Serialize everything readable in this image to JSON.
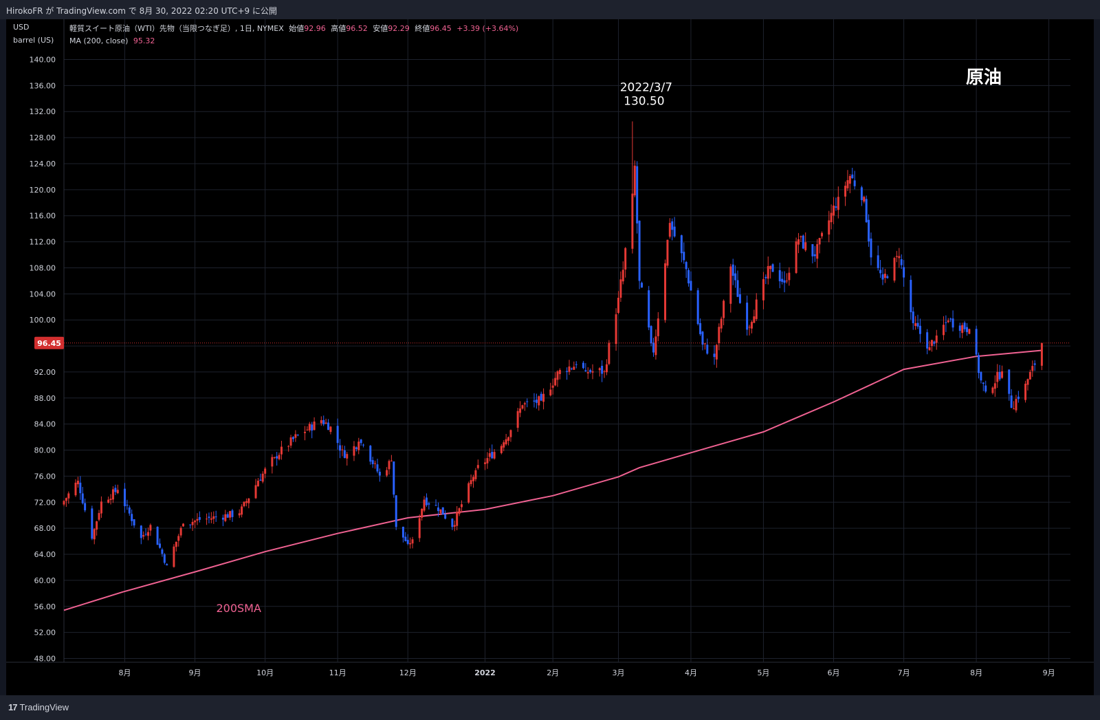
{
  "header": {
    "publish_line": "HirokoFR が TradingView.com で 8月 30, 2022 02:20 UTC+9 に公開"
  },
  "footer": {
    "brand": "TradingView",
    "brand_mark": "17"
  },
  "legend": {
    "title": "軽質スイート原油（WTI）先物（当限つなぎ足）, 1日, NYMEX",
    "open_label": "始値",
    "open": "92.96",
    "high_label": "高値",
    "high": "96.52",
    "low_label": "安値",
    "low": "92.29",
    "close_label": "終値",
    "close": "96.45",
    "change": "+3.39 (+3.64%)",
    "ma_label": "MA (200, close)",
    "ma_value": "95.32"
  },
  "chart_data": {
    "type": "candlestick",
    "title": "軽質スイート原油（WTI）先物（当限つなぎ足）, 1日, NYMEX",
    "unit_labels": [
      "USD",
      "barrel (US)"
    ],
    "watermark": "原油",
    "ylim": [
      48,
      140
    ],
    "yticks": [
      "140.00",
      "136.00",
      "132.00",
      "128.00",
      "124.00",
      "120.00",
      "116.00",
      "112.00",
      "108.00",
      "104.00",
      "100.00",
      "96.00",
      "92.00",
      "88.00",
      "84.00",
      "80.00",
      "76.00",
      "72.00",
      "68.00",
      "64.00",
      "60.00",
      "56.00",
      "52.00",
      "48.00"
    ],
    "x_month_ticks": [
      {
        "label": "8月",
        "date": "2021-08-02"
      },
      {
        "label": "9月",
        "date": "2021-09-01"
      },
      {
        "label": "10月",
        "date": "2021-10-01"
      },
      {
        "label": "11月",
        "date": "2021-11-01"
      },
      {
        "label": "12月",
        "date": "2021-12-01"
      },
      {
        "label": "2022",
        "date": "2022-01-03"
      },
      {
        "label": "2月",
        "date": "2022-02-01"
      },
      {
        "label": "3月",
        "date": "2022-03-01"
      },
      {
        "label": "4月",
        "date": "2022-04-01"
      },
      {
        "label": "5月",
        "date": "2022-05-02"
      },
      {
        "label": "6月",
        "date": "2022-06-01"
      },
      {
        "label": "7月",
        "date": "2022-07-01"
      },
      {
        "label": "8月",
        "date": "2022-08-01"
      },
      {
        "label": "9月",
        "date": "2022-09-01"
      }
    ],
    "x_range": [
      "2021-07-07",
      "2022-09-02"
    ],
    "last_price": {
      "value": 96.45,
      "label": "96.45",
      "color": "#d32f2f"
    },
    "annotations": [
      {
        "lines": [
          "2022/3/7",
          "130.50"
        ],
        "date": "2022-03-07",
        "price": 130.5
      },
      {
        "lines": [
          "200SMA"
        ],
        "date": "2021-09-15",
        "price": 56.2,
        "color": "#f06292"
      }
    ],
    "ohlc_keypoints": [
      {
        "date": "2021-07-07",
        "close": 72.2
      },
      {
        "date": "2021-07-13",
        "close": 75.3
      },
      {
        "date": "2021-07-19",
        "close": 66.4
      },
      {
        "date": "2021-07-23",
        "close": 72.1
      },
      {
        "date": "2021-07-30",
        "close": 73.9
      },
      {
        "date": "2021-08-09",
        "close": 66.5
      },
      {
        "date": "2021-08-13",
        "close": 68.5
      },
      {
        "date": "2021-08-20",
        "close": 62.3
      },
      {
        "date": "2021-08-27",
        "close": 68.7
      },
      {
        "date": "2021-09-03",
        "close": 69.3
      },
      {
        "date": "2021-09-10",
        "close": 69.7
      },
      {
        "date": "2021-09-20",
        "close": 70.3
      },
      {
        "date": "2021-09-28",
        "close": 75.3
      },
      {
        "date": "2021-10-05",
        "close": 78.9
      },
      {
        "date": "2021-10-15",
        "close": 82.3
      },
      {
        "date": "2021-10-25",
        "close": 84.6
      },
      {
        "date": "2021-10-29",
        "close": 83.6
      },
      {
        "date": "2021-11-04",
        "close": 78.8
      },
      {
        "date": "2021-11-10",
        "close": 81.3
      },
      {
        "date": "2021-11-12",
        "close": 80.8
      },
      {
        "date": "2021-11-19",
        "close": 76.1
      },
      {
        "date": "2021-11-24",
        "close": 78.4
      },
      {
        "date": "2021-11-26",
        "close": 68.2
      },
      {
        "date": "2021-12-01",
        "close": 65.6
      },
      {
        "date": "2021-12-03",
        "close": 66.3
      },
      {
        "date": "2021-12-08",
        "close": 72.4
      },
      {
        "date": "2021-12-15",
        "close": 70.9
      },
      {
        "date": "2021-12-20",
        "close": 68.2
      },
      {
        "date": "2021-12-30",
        "close": 76.9
      },
      {
        "date": "2022-01-11",
        "close": 81.2
      },
      {
        "date": "2022-01-19",
        "close": 86.9
      },
      {
        "date": "2022-01-27",
        "close": 87.6
      },
      {
        "date": "2022-02-04",
        "close": 92.3
      },
      {
        "date": "2022-02-11",
        "close": 93.1
      },
      {
        "date": "2022-02-15",
        "close": 92.1
      },
      {
        "date": "2022-02-23",
        "close": 92.1
      },
      {
        "date": "2022-03-01",
        "close": 103.4
      },
      {
        "date": "2022-03-03",
        "close": 107.7
      },
      {
        "date": "2022-03-07",
        "close": 119.4,
        "high": 130.5
      },
      {
        "date": "2022-03-08",
        "close": 123.7
      },
      {
        "date": "2022-03-10",
        "close": 106.0
      },
      {
        "date": "2022-03-15",
        "close": 96.4
      },
      {
        "date": "2022-03-16",
        "close": 95.0
      },
      {
        "date": "2022-03-23",
        "close": 114.9
      },
      {
        "date": "2022-03-30",
        "close": 107.8
      },
      {
        "date": "2022-04-06",
        "close": 96.2
      },
      {
        "date": "2022-04-11",
        "close": 94.3
      },
      {
        "date": "2022-04-18",
        "close": 108.2
      },
      {
        "date": "2022-04-25",
        "close": 98.5
      },
      {
        "date": "2022-05-05",
        "close": 108.3
      },
      {
        "date": "2022-05-11",
        "close": 105.7
      },
      {
        "date": "2022-05-17",
        "close": 112.4
      },
      {
        "date": "2022-05-24",
        "close": 109.8
      },
      {
        "date": "2022-06-03",
        "close": 118.9
      },
      {
        "date": "2022-06-08",
        "close": 122.1
      },
      {
        "date": "2022-06-14",
        "close": 118.9
      },
      {
        "date": "2022-06-17",
        "close": 109.6
      },
      {
        "date": "2022-06-22",
        "close": 106.2
      },
      {
        "date": "2022-06-29",
        "close": 109.8
      },
      {
        "date": "2022-07-05",
        "close": 99.5
      },
      {
        "date": "2022-07-12",
        "close": 95.8
      },
      {
        "date": "2022-07-15",
        "close": 97.6
      },
      {
        "date": "2022-07-20",
        "close": 99.9
      },
      {
        "date": "2022-07-29",
        "close": 98.6
      },
      {
        "date": "2022-08-03",
        "close": 90.7
      },
      {
        "date": "2022-08-05",
        "close": 89.0
      },
      {
        "date": "2022-08-12",
        "close": 92.1
      },
      {
        "date": "2022-08-16",
        "close": 86.5
      },
      {
        "date": "2022-08-22",
        "close": 90.2
      },
      {
        "date": "2022-08-26",
        "close": 93.1
      },
      {
        "date": "2022-08-29",
        "open": 92.96,
        "high": 96.52,
        "low": 92.29,
        "close": 96.45
      }
    ],
    "sma_200": {
      "name": "MA (200, close)",
      "color": "#f06292",
      "points": [
        {
          "date": "2021-07-07",
          "value": 55.4
        },
        {
          "date": "2021-08-01",
          "value": 58.2
        },
        {
          "date": "2021-09-01",
          "value": 61.3
        },
        {
          "date": "2021-10-01",
          "value": 64.4
        },
        {
          "date": "2021-11-01",
          "value": 67.2
        },
        {
          "date": "2021-12-01",
          "value": 69.6
        },
        {
          "date": "2022-01-03",
          "value": 70.9
        },
        {
          "date": "2022-02-01",
          "value": 73.0
        },
        {
          "date": "2022-03-01",
          "value": 75.9
        },
        {
          "date": "2022-03-10",
          "value": 77.3
        },
        {
          "date": "2022-04-01",
          "value": 79.6
        },
        {
          "date": "2022-05-02",
          "value": 82.8
        },
        {
          "date": "2022-06-01",
          "value": 87.4
        },
        {
          "date": "2022-07-01",
          "value": 92.4
        },
        {
          "date": "2022-08-01",
          "value": 94.4
        },
        {
          "date": "2022-08-29",
          "value": 95.32
        }
      ]
    },
    "colors": {
      "up": "#e53935",
      "down": "#2962ff",
      "grid": "#1e222d",
      "axis_text": "#d1d4dc"
    }
  }
}
